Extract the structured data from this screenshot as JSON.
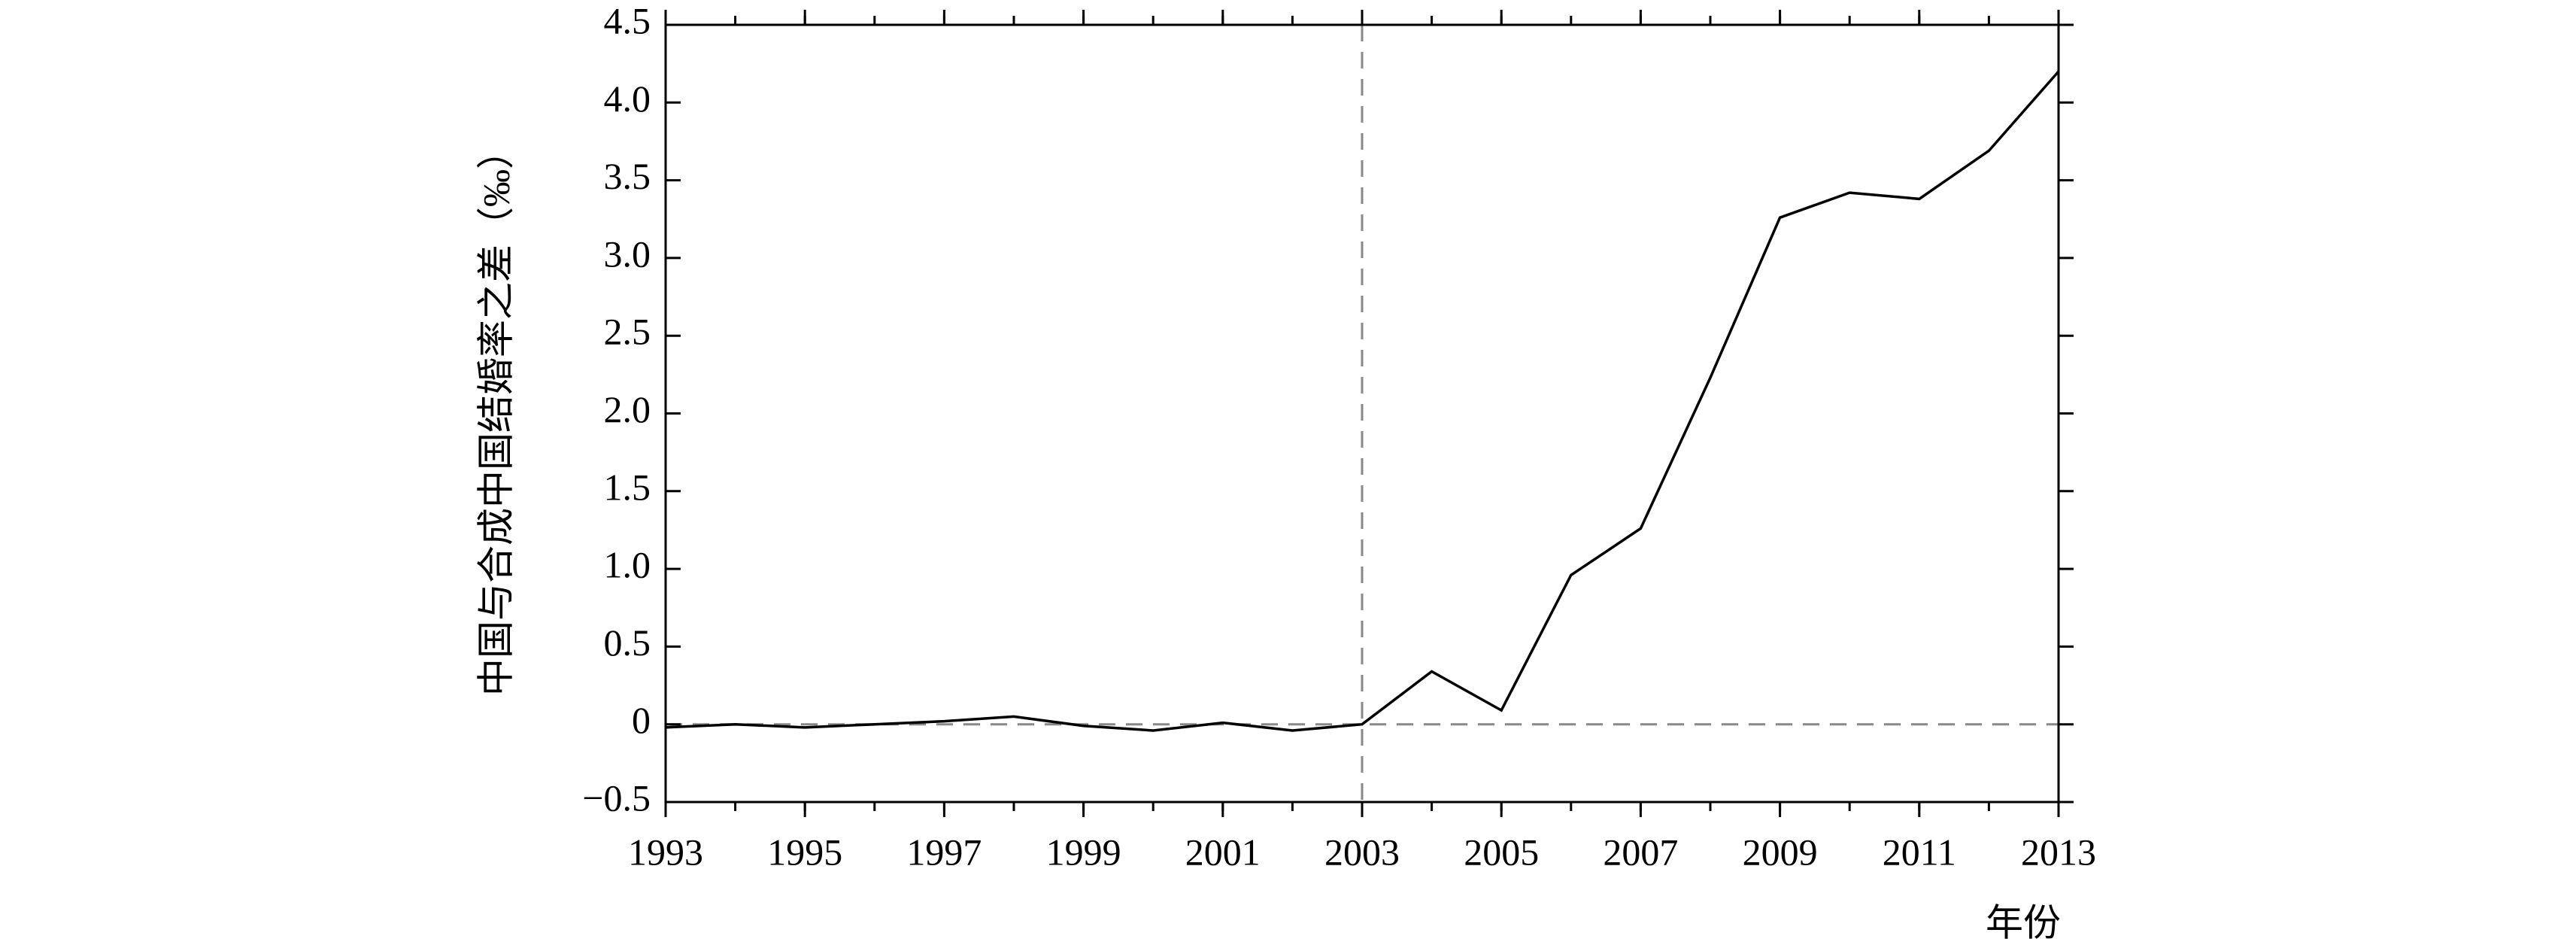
{
  "chart_data": {
    "type": "line",
    "x_label": "年份",
    "y_label": "中国与合成中国结婚率之差（‰）",
    "x": [
      1993,
      1994,
      1995,
      1996,
      1997,
      1998,
      1999,
      2000,
      2001,
      2002,
      2003,
      2004,
      2005,
      2006,
      2007,
      2008,
      2009,
      2010,
      2011,
      2012,
      2013
    ],
    "series": [
      {
        "color": "#000000",
        "values": [
          -0.02,
          0.0,
          -0.02,
          0.0,
          0.02,
          0.05,
          -0.01,
          -0.04,
          0.01,
          -0.04,
          0.0,
          0.34,
          0.09,
          0.96,
          1.26,
          2.23,
          3.26,
          3.42,
          3.38,
          3.69,
          4.2
        ]
      }
    ],
    "xlim": [
      1993,
      2013
    ],
    "xticks": [
      1993,
      1995,
      1997,
      1999,
      2001,
      2003,
      2005,
      2007,
      2009,
      2011,
      2013
    ],
    "ylim": [
      -0.5,
      4.5
    ],
    "yticks": [
      {
        "value": -0.5,
        "label": "−0.5"
      },
      0,
      0.5,
      {
        "value": 1,
        "label": "1.0"
      },
      1.5,
      {
        "value": 2,
        "label": "2.0"
      },
      2.5,
      {
        "value": 3,
        "label": "3.0"
      },
      3.5,
      {
        "value": 4,
        "label": "4.0"
      },
      4.5
    ],
    "reference_lines": {
      "x": 2003,
      "y": 0,
      "color": "#888888"
    }
  }
}
